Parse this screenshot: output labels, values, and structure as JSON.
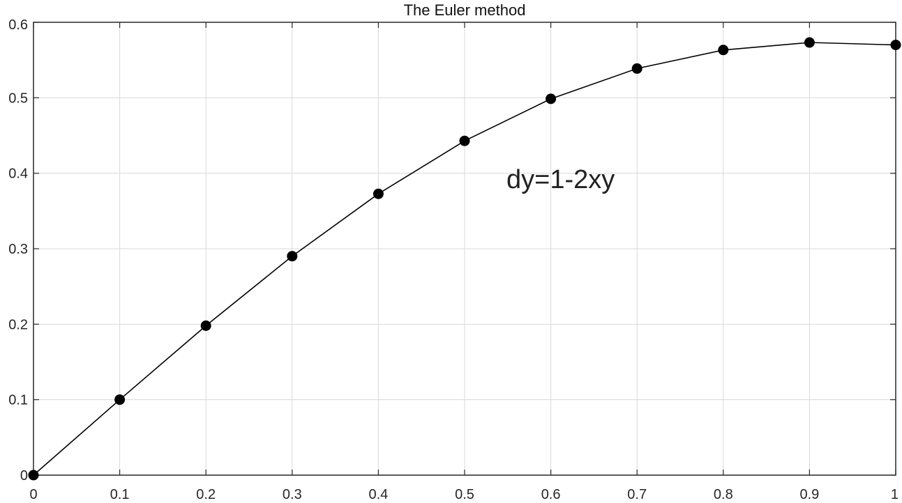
{
  "chart_data": {
    "type": "line",
    "title": "The Euler method",
    "xlabel": "",
    "ylabel": "",
    "xlim": [
      0,
      1
    ],
    "ylim": [
      0,
      0.6
    ],
    "x_ticks": [
      "0",
      "0.1",
      "0.2",
      "0.3",
      "0.4",
      "0.5",
      "0.6",
      "0.7",
      "0.8",
      "0.9",
      "1"
    ],
    "y_ticks": [
      "0",
      "0.1",
      "0.2",
      "0.3",
      "0.4",
      "0.5",
      "0.6"
    ],
    "grid": true,
    "annotation": "dy=1-2xy",
    "series": [
      {
        "x": [
          0,
          0.1,
          0.2,
          0.3,
          0.4,
          0.5,
          0.6,
          0.7,
          0.8,
          0.9,
          1.0
        ],
        "y": [
          0,
          0.1,
          0.198,
          0.2901,
          0.3727,
          0.4429,
          0.4986,
          0.5387,
          0.5633,
          0.5732,
          0.57
        ],
        "color": "#000000",
        "marker": "circle"
      }
    ]
  }
}
